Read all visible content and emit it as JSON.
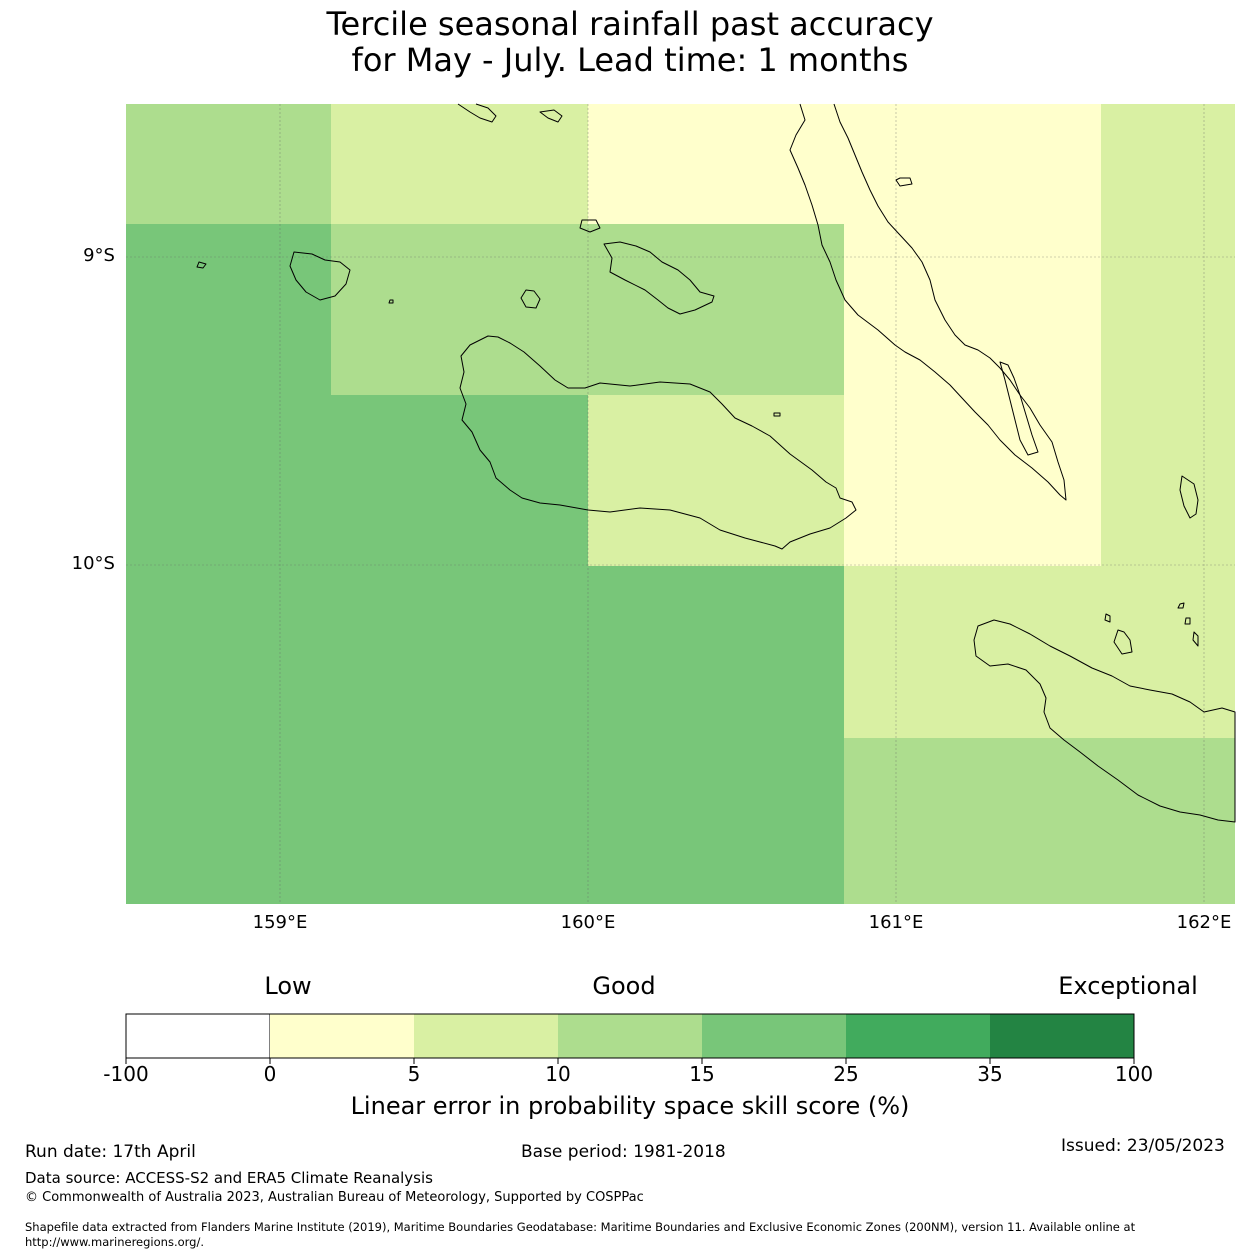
{
  "title": {
    "line1": "Tercile seasonal rainfall past accuracy",
    "line2": "for May - July. Lead time: 1 months"
  },
  "map": {
    "lon_ticks": [
      "159°E",
      "160°E",
      "161°E",
      "162°E"
    ],
    "lat_ticks": [
      "9°S",
      "10°S"
    ],
    "colors": {
      "bin_neg100_0": "#ffffff",
      "bin_0_5": "#ffffcc",
      "bin_5_10": "#d9f0a3",
      "bin_10_15": "#addd8e",
      "bin_15_25": "#78c679",
      "bin_25_35": "#41ab5d",
      "bin_35_100": "#238443"
    },
    "coastline_color": "#000000"
  },
  "legend": {
    "categories": [
      "Low",
      "Good",
      "Exceptional"
    ],
    "bounds": [
      "-100",
      "0",
      "5",
      "10",
      "15",
      "25",
      "35",
      "100"
    ],
    "colors": [
      "#ffffff",
      "#ffffcc",
      "#d9f0a3",
      "#addd8e",
      "#78c679",
      "#41ab5d",
      "#238443"
    ],
    "label": "Linear error in probability space skill score (%)"
  },
  "footer": {
    "run_date": "Run date: 17th April",
    "base_period": "Base period: 1981-2018",
    "issued": "Issued: 23/05/2023",
    "data_source": "Data source: ACCESS-S2 and ERA5 Climate Reanalysis",
    "copyright": "© Commonwealth of Australia 2023, Australian Bureau of Meteorology, Supported by COSPPac",
    "shapefile_line1": "Shapefile data extracted from Flanders Marine Institute (2019), Maritime Boundaries Geodatabase: Maritime Boundaries and Exclusive Economic Zones (200NM), version 11. Available online at",
    "shapefile_line2": "http://www.marineregions.org/."
  }
}
